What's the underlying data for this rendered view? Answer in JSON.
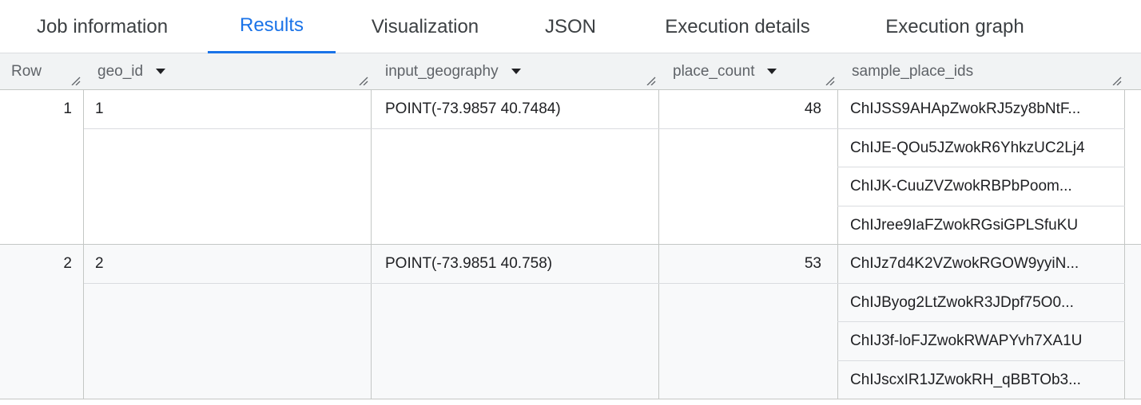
{
  "tabs": [
    {
      "label": "Job information",
      "active": false
    },
    {
      "label": "Results",
      "active": true
    },
    {
      "label": "Visualization",
      "active": false
    },
    {
      "label": "JSON",
      "active": false
    },
    {
      "label": "Execution details",
      "active": false
    },
    {
      "label": "Execution graph",
      "active": false
    }
  ],
  "accent": "#1a73e8",
  "columns": [
    "Row",
    "geo_id",
    "input_geography",
    "place_count",
    "sample_place_ids"
  ],
  "rows": [
    {
      "row": "1",
      "geo_id": "1",
      "input_geography": "POINT(-73.9857 40.7484)",
      "place_count": "48",
      "sample_place_ids": [
        "ChIJSS9AHApZwokRJ5zy8bNtF...",
        "ChIJE-QOu5JZwokR6YhkzUC2Lj4",
        "ChIJK-CuuZVZwokRBPbPoom...",
        "ChIJree9IaFZwokRGsiGPLSfuKU"
      ]
    },
    {
      "row": "2",
      "geo_id": "2",
      "input_geography": "POINT(-73.9851 40.758)",
      "place_count": "53",
      "sample_place_ids": [
        "ChIJz7d4K2VZwokRGOW9yyiN...",
        "ChIJByog2LtZwokR3JDpf75O0...",
        "ChIJ3f-loFJZwokRWAPYvh7XA1U",
        "ChIJscxIR1JZwokRH_qBBTOb3..."
      ]
    }
  ]
}
